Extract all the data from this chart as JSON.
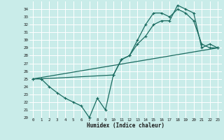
{
  "xlabel": "Humidex (Indice chaleur)",
  "background_color": "#c9ece9",
  "grid_color": "#ffffff",
  "line_color": "#1a6b60",
  "xlim": [
    -0.5,
    23.5
  ],
  "ylim": [
    20,
    35
  ],
  "xticks": [
    0,
    1,
    2,
    3,
    4,
    5,
    6,
    7,
    8,
    9,
    10,
    11,
    12,
    13,
    14,
    15,
    16,
    17,
    18,
    19,
    20,
    21,
    22,
    23
  ],
  "yticks": [
    20,
    21,
    22,
    23,
    24,
    25,
    26,
    27,
    28,
    29,
    30,
    31,
    32,
    33,
    34
  ],
  "line1_x": [
    0,
    1,
    2,
    3,
    4,
    5,
    6,
    7,
    8,
    9,
    10,
    11,
    12,
    13,
    14,
    15,
    16,
    17,
    18,
    19,
    20,
    21,
    22,
    23
  ],
  "line1_y": [
    25,
    25,
    24,
    23.2,
    22.5,
    22,
    21.5,
    20,
    22.5,
    21,
    25.5,
    27.5,
    28,
    30,
    32,
    33.5,
    33.5,
    33,
    34,
    33.5,
    32.5,
    29.5,
    29,
    29
  ],
  "line2_x": [
    0,
    1,
    10,
    11,
    12,
    13,
    14,
    15,
    16,
    17,
    18,
    19,
    20,
    21,
    22,
    23
  ],
  "line2_y": [
    25,
    25,
    25.5,
    27.5,
    28.0,
    29.5,
    30.5,
    32.0,
    32.5,
    32.5,
    34.5,
    34.0,
    33.5,
    29,
    29.5,
    29
  ],
  "line3_x": [
    0,
    23
  ],
  "line3_y": [
    25,
    29
  ]
}
